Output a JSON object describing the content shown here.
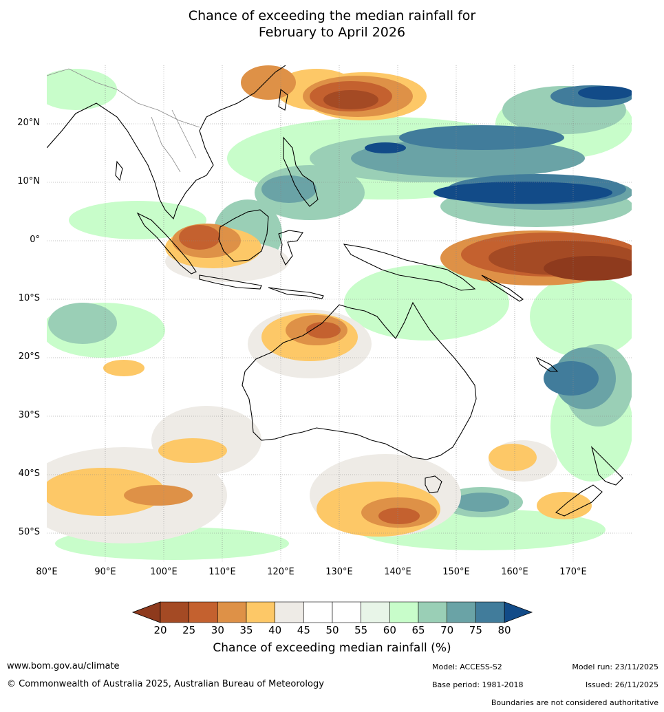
{
  "title_line1": "Chance of exceeding the median rainfall for",
  "title_line2": "February to April 2026",
  "map": {
    "lon_range": [
      80,
      180
    ],
    "lat_range": [
      -55,
      30
    ],
    "lat_labels": [
      "20°N",
      "10°N",
      "0°",
      "10°S",
      "20°S",
      "30°S",
      "40°S",
      "50°S"
    ],
    "lat_values": [
      20,
      10,
      0,
      -10,
      -20,
      -30,
      -40,
      -50
    ],
    "lon_labels": [
      "80°E",
      "90°E",
      "100°E",
      "110°E",
      "120°E",
      "130°E",
      "140°E",
      "150°E",
      "160°E",
      "170°E"
    ],
    "lon_values": [
      80,
      90,
      100,
      110,
      120,
      130,
      140,
      150,
      160,
      170
    ]
  },
  "colorbar": {
    "ticks": [
      "20",
      "25",
      "30",
      "35",
      "40",
      "45",
      "50",
      "55",
      "60",
      "65",
      "70",
      "75",
      "80"
    ],
    "colors": [
      "#a44a24",
      "#c4612f",
      "#de9147",
      "#fdc867",
      "#eeebe6",
      "#ffffff",
      "#ffffff",
      "#e8f5e8",
      "#c8fdca",
      "#9acfb6",
      "#6aa3a6",
      "#417c9b"
    ],
    "under_color": "#8e3a1d",
    "over_color": "#124b88",
    "label": "Chance of exceeding median rainfall (%)"
  },
  "footer": {
    "website": "www.bom.gov.au/climate",
    "copyright": "© Commonwealth of Australia 2025, Australian Bureau of Meteorology",
    "model": "Model: ACCESS-S2",
    "base_period": "Base period: 1981-2018",
    "model_run": "Model run: 23/11/2025",
    "issued": "Issued: 26/11/2025",
    "disclaimer": "Boundaries are not considered authoritative"
  }
}
